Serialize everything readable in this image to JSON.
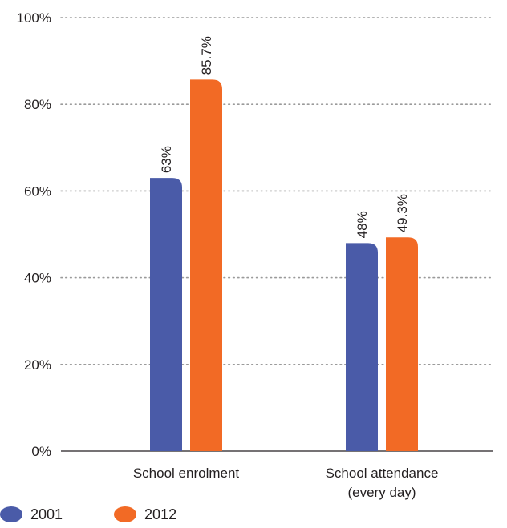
{
  "chart_data": {
    "type": "bar",
    "categories": [
      "School enrolment",
      "School attendance\n(every day)"
    ],
    "series": [
      {
        "name": "2001",
        "values": [
          63,
          48
        ],
        "labels": [
          "63%",
          "48%"
        ],
        "color": "#4a5ba8"
      },
      {
        "name": "2012",
        "values": [
          85.7,
          49.3
        ],
        "labels": [
          "85.7%",
          "49.3%"
        ],
        "color": "#f26a25"
      }
    ],
    "y_ticks": [
      "0%",
      "20%",
      "40%",
      "60%",
      "80%",
      "100%"
    ],
    "ylim": [
      0,
      100
    ],
    "grid": true,
    "legend_position": "bottom-left"
  }
}
